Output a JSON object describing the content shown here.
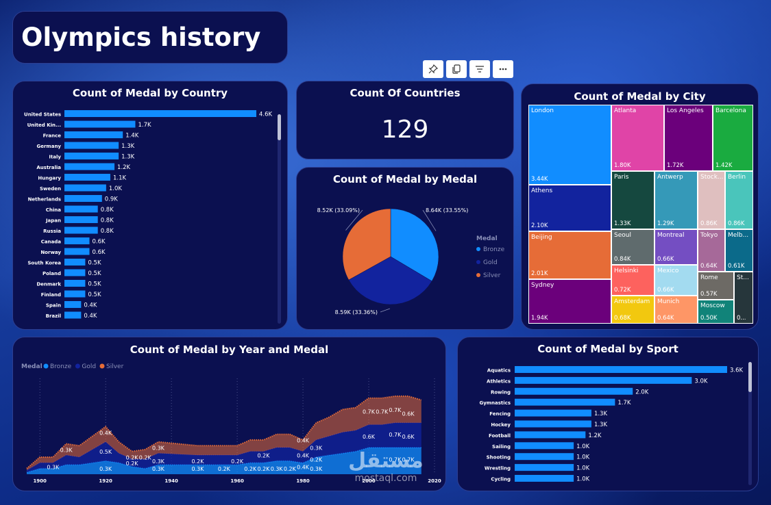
{
  "page_title": "Olympics history",
  "country_chart": {
    "title": "Count of Medal by Country",
    "chart_data": {
      "type": "bar",
      "orientation": "horizontal",
      "categories": [
        "United States",
        "United Kin...",
        "France",
        "Germany",
        "Italy",
        "Australia",
        "Hungary",
        "Sweden",
        "Netherlands",
        "China",
        "Japan",
        "Russia",
        "Canada",
        "Norway",
        "South Korea",
        "Poland",
        "Denmark",
        "Finland",
        "Spain",
        "Brazil"
      ],
      "values": [
        4.6,
        1.7,
        1.4,
        1.3,
        1.3,
        1.2,
        1.1,
        1.0,
        0.9,
        0.8,
        0.8,
        0.8,
        0.6,
        0.6,
        0.5,
        0.5,
        0.5,
        0.5,
        0.4,
        0.4
      ],
      "labels": [
        "4.6K",
        "1.7K",
        "1.4K",
        "1.3K",
        "1.3K",
        "1.2K",
        "1.1K",
        "1.0K",
        "0.9K",
        "0.8K",
        "0.8K",
        "0.8K",
        "0.6K",
        "0.6K",
        "0.5K",
        "0.5K",
        "0.5K",
        "0.5K",
        "0.4K",
        "0.4K"
      ],
      "color": "#118dff"
    }
  },
  "countries_card": {
    "title": "Count Of Countries",
    "value": "129"
  },
  "medal_pie": {
    "title": "Count of Medal by Medal",
    "chart_data": {
      "type": "pie",
      "legend_title": "Medal",
      "legend": [
        "Bronze",
        "Gold",
        "Silver"
      ],
      "slices": [
        {
          "name": "Bronze",
          "value": 8.64,
          "label": "8.64K (33.55%)",
          "color": "#118dff"
        },
        {
          "name": "Gold",
          "value": 8.59,
          "label": "8.59K (33.36%)",
          "color": "#12239e"
        },
        {
          "name": "Silver",
          "value": 8.52,
          "label": "8.52K (33.09%)",
          "color": "#e66c37"
        }
      ]
    }
  },
  "city_treemap": {
    "title": "Count of Medal by City",
    "chart_data": {
      "type": "treemap",
      "cells": [
        {
          "name": "London",
          "label": "3.44K",
          "color": "#118dff"
        },
        {
          "name": "Atlanta",
          "label": "1.80K",
          "color": "#e044a7"
        },
        {
          "name": "Los Angeles",
          "label": "1.72K",
          "color": "#6b007b"
        },
        {
          "name": "Barcelona",
          "label": "1.42K",
          "color": "#1aab40"
        },
        {
          "name": "Athens",
          "label": "2.10K",
          "color": "#12239e"
        },
        {
          "name": "Paris",
          "label": "1.33K",
          "color": "#15483f"
        },
        {
          "name": "Antwerp",
          "label": "1.29K",
          "color": "#3599b8"
        },
        {
          "name": "Stock...",
          "label": "0.86K",
          "color": "#dfbfbf"
        },
        {
          "name": "Berlin",
          "label": "0.86K",
          "color": "#4ac5bb"
        },
        {
          "name": "Beijing",
          "label": "2.01K",
          "color": "#e66c37"
        },
        {
          "name": "Seoul",
          "label": "0.84K",
          "color": "#5f6b6d"
        },
        {
          "name": "Montreal",
          "label": "0.66K",
          "color": "#744ec2"
        },
        {
          "name": "Tokyo",
          "label": "0.64K",
          "color": "#a66999"
        },
        {
          "name": "Melb...",
          "label": "0.61K",
          "color": "#0b6a8a"
        },
        {
          "name": "Sydney",
          "label": "1.94K",
          "color": "#6b007b"
        },
        {
          "name": "Helsinki",
          "label": "0.72K",
          "color": "#fd625e"
        },
        {
          "name": "Mexico",
          "label": "0.66K",
          "color": "#a3dbf0"
        },
        {
          "name": "Rome",
          "label": "0.57K",
          "color": "#6d6a65"
        },
        {
          "name": "St...",
          "label": "0...",
          "color": "#26363b"
        },
        {
          "name": "Amsterdam",
          "label": "0.68K",
          "color": "#f2c80f"
        },
        {
          "name": "Munich",
          "label": "0.64K",
          "color": "#fe9666"
        },
        {
          "name": "Moscow",
          "label": "0.50K",
          "color": "#118379"
        }
      ]
    }
  },
  "year_chart": {
    "title": "Count of Medal by Year and Medal",
    "chart_data": {
      "type": "area",
      "stacked": true,
      "legend_title": "Medal",
      "legend": [
        "Bronze",
        "Gold",
        "Silver"
      ],
      "colors": {
        "Bronze": "#118dff",
        "Gold": "#12239e",
        "Silver": "#e66c37"
      },
      "x": [
        1896,
        1900,
        1904,
        1908,
        1912,
        1920,
        1924,
        1928,
        1932,
        1936,
        1948,
        1952,
        1956,
        1960,
        1964,
        1968,
        1972,
        1976,
        1980,
        1984,
        1988,
        1992,
        1996,
        2000,
        2004,
        2008,
        2012,
        2016
      ],
      "xlim": [
        1896,
        2020
      ],
      "x_ticks": [
        "1900",
        "1920",
        "1940",
        "1960",
        "1980",
        "2000",
        "2020"
      ],
      "series": [
        {
          "name": "Bronze",
          "values": [
            0.05,
            0.15,
            0.15,
            0.25,
            0.25,
            0.35,
            0.3,
            0.2,
            0.15,
            0.25,
            0.25,
            0.25,
            0.25,
            0.25,
            0.3,
            0.3,
            0.35,
            0.35,
            0.3,
            0.45,
            0.5,
            0.55,
            0.6,
            0.7,
            0.7,
            0.7,
            0.7,
            0.7
          ]
        },
        {
          "name": "Gold",
          "values": [
            0.05,
            0.15,
            0.15,
            0.25,
            0.2,
            0.5,
            0.25,
            0.2,
            0.25,
            0.3,
            0.25,
            0.25,
            0.25,
            0.25,
            0.3,
            0.3,
            0.35,
            0.35,
            0.3,
            0.45,
            0.5,
            0.55,
            0.55,
            0.6,
            0.6,
            0.65,
            0.65,
            0.65
          ]
        },
        {
          "name": "Silver",
          "values": [
            0.05,
            0.15,
            0.15,
            0.3,
            0.3,
            0.4,
            0.3,
            0.2,
            0.25,
            0.3,
            0.25,
            0.25,
            0.25,
            0.25,
            0.3,
            0.3,
            0.35,
            0.35,
            0.3,
            0.45,
            0.5,
            0.6,
            0.6,
            0.7,
            0.7,
            0.7,
            0.7,
            0.6
          ]
        }
      ],
      "annotations": [
        {
          "text": "0.3K",
          "x": 1904,
          "y": 0.1
        },
        {
          "text": "0.3K",
          "x": 1908,
          "y": 0.55
        },
        {
          "text": "0.4K",
          "x": 1920,
          "y": 1.0
        },
        {
          "text": "0.5K",
          "x": 1920,
          "y": 0.5
        },
        {
          "text": "0.3K",
          "x": 1920,
          "y": 0.05
        },
        {
          "text": "0.2K",
          "x": 1928,
          "y": 0.35
        },
        {
          "text": "0.2K",
          "x": 1928,
          "y": 0.2
        },
        {
          "text": "0.2K",
          "x": 1932,
          "y": 0.35
        },
        {
          "text": "0.3K",
          "x": 1936,
          "y": 0.6
        },
        {
          "text": "0.3K",
          "x": 1936,
          "y": 0.25
        },
        {
          "text": "0.3K",
          "x": 1936,
          "y": 0.05
        },
        {
          "text": "0.2K",
          "x": 1948,
          "y": 0.25
        },
        {
          "text": "0.3K",
          "x": 1948,
          "y": 0.05
        },
        {
          "text": "0.2K",
          "x": 1956,
          "y": 0.05
        },
        {
          "text": "0.2K",
          "x": 1960,
          "y": 0.25
        },
        {
          "text": "0.2K",
          "x": 1964,
          "y": 0.05
        },
        {
          "text": "0.2K",
          "x": 1968,
          "y": 0.4
        },
        {
          "text": "0.2K",
          "x": 1968,
          "y": 0.05
        },
        {
          "text": "0.3K",
          "x": 1972,
          "y": 0.05
        },
        {
          "text": "0.2K",
          "x": 1976,
          "y": 0.05
        },
        {
          "text": "0.4K",
          "x": 1980,
          "y": 0.8
        },
        {
          "text": "0.4K",
          "x": 1980,
          "y": 0.4
        },
        {
          "text": "0.4K",
          "x": 1980,
          "y": 0.1
        },
        {
          "text": "0.3K",
          "x": 1984,
          "y": 0.6
        },
        {
          "text": "0.2K",
          "x": 1984,
          "y": 0.3
        },
        {
          "text": "0.3K",
          "x": 1984,
          "y": 0.05
        },
        {
          "text": "0.7K",
          "x": 2000,
          "y": 1.55
        },
        {
          "text": "0.6K",
          "x": 2000,
          "y": 0.9
        },
        {
          "text": "0.7K",
          "x": 2004,
          "y": 1.55
        },
        {
          "text": "0.7K",
          "x": 2008,
          "y": 1.6
        },
        {
          "text": "0.7K",
          "x": 2008,
          "y": 0.95
        },
        {
          "text": "0.7K",
          "x": 2008,
          "y": 0.3
        },
        {
          "text": "0.6K",
          "x": 2012,
          "y": 1.5
        },
        {
          "text": "0.6K",
          "x": 2012,
          "y": 0.9
        },
        {
          "text": "0.7K",
          "x": 2012,
          "y": 0.3
        }
      ]
    }
  },
  "sport_chart": {
    "title": "Count of Medal by Sport",
    "chart_data": {
      "type": "bar",
      "orientation": "horizontal",
      "categories": [
        "Aquatics",
        "Athletics",
        "Rowing",
        "Gymnastics",
        "Fencing",
        "Hockey",
        "Football",
        "Sailing",
        "Shooting",
        "Wrestling",
        "Cycling"
      ],
      "values": [
        3.6,
        3.0,
        2.0,
        1.7,
        1.3,
        1.3,
        1.2,
        1.0,
        1.0,
        1.0,
        1.0
      ],
      "labels": [
        "3.6K",
        "3.0K",
        "2.0K",
        "1.7K",
        "1.3K",
        "1.3K",
        "1.2K",
        "1.0K",
        "1.0K",
        "1.0K",
        "1.0K"
      ],
      "color": "#118dff"
    }
  },
  "toolbar": {
    "icons": [
      "pin-icon",
      "copy-icon",
      "filter-icon",
      "more-icon"
    ]
  },
  "watermark": {
    "logo": "مستقل",
    "site": "mostaql.com"
  }
}
